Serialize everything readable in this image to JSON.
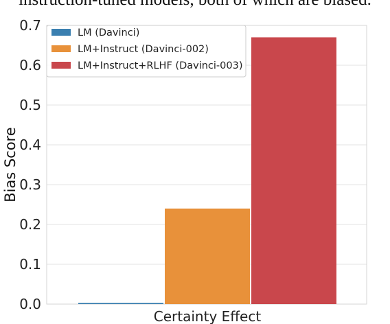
{
  "caption_fragment": "instruction-tuned models, both of which are biased.",
  "chart_data": {
    "type": "bar",
    "categories": [
      "Certainty Effect"
    ],
    "series": [
      {
        "name": "LM (Davinci)",
        "values": [
          0.003
        ],
        "color": "#3a7fb0"
      },
      {
        "name": "LM+Instruct (Davinci-002)",
        "values": [
          0.24
        ],
        "color": "#e8913a"
      },
      {
        "name": "LM+Instruct+RLHF (Davinci-003)",
        "values": [
          0.67
        ],
        "color": "#c9474c"
      }
    ],
    "xlabel": "",
    "ylabel": "Bias Score",
    "ylim": [
      0,
      0.7
    ],
    "yticks": [
      "0.0",
      "0.1",
      "0.2",
      "0.3",
      "0.4",
      "0.5",
      "0.6",
      "0.7"
    ],
    "grid": true,
    "legend_position": "top-left"
  }
}
